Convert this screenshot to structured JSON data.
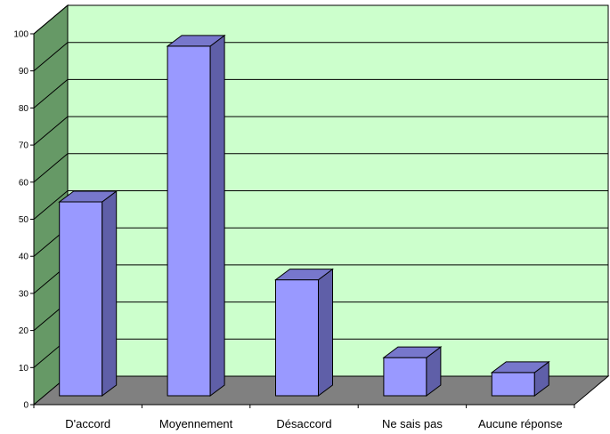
{
  "chart_data": {
    "type": "bar",
    "three_d": true,
    "categories": [
      "D'accord",
      "Moyennement",
      "Désaccord",
      "Ne sais pas",
      "Aucune réponse"
    ],
    "values": [
      54,
      96,
      33,
      12,
      8
    ],
    "title": "",
    "xlabel": "",
    "ylabel": "",
    "ylim": [
      0,
      100
    ],
    "yticks": [
      0,
      10,
      20,
      30,
      40,
      50,
      60,
      70,
      80,
      90,
      100
    ],
    "grid": true,
    "legend": "none",
    "colors": {
      "back_wall": "#ccffcc",
      "side_wall": "#669966",
      "floor": "#808080",
      "bar_front": "#9999ff",
      "bar_side": "#5f5fa8",
      "bar_top": "#7777cc",
      "edge": "#000000"
    }
  }
}
